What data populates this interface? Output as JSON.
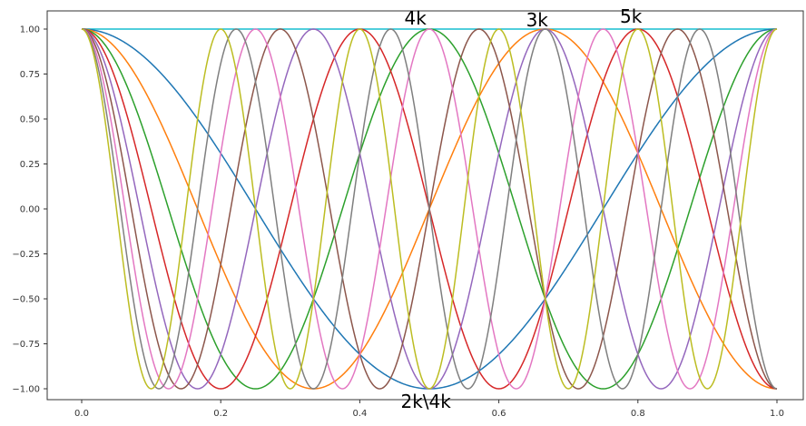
{
  "chart_data": {
    "type": "line",
    "title": "",
    "xlabel": "",
    "ylabel": "",
    "xlim": [
      0.0,
      1.0
    ],
    "ylim": [
      -1.0,
      1.0
    ],
    "grid": false,
    "legend": "none",
    "x_ticks": [
      "0.0",
      "0.2",
      "0.4",
      "0.6",
      "0.8",
      "1.0"
    ],
    "x_tick_values": [
      0.0,
      0.2,
      0.4,
      0.6,
      0.8,
      1.0
    ],
    "y_ticks": [
      "1.00",
      "0.75",
      "0.50",
      "0.25",
      "0.00",
      "−0.25",
      "−0.50",
      "−0.75",
      "−1.00"
    ],
    "y_tick_values": [
      1.0,
      0.75,
      0.5,
      0.25,
      0.0,
      -0.25,
      -0.5,
      -0.75,
      -1.0
    ],
    "series": [
      {
        "function": "cos(2πkx)",
        "k": 0,
        "color": "#17becf"
      },
      {
        "function": "cos(2πkx)",
        "k": 1,
        "color": "#1f77b4"
      },
      {
        "function": "cos(2πkx)",
        "k": 1.5,
        "color": "#ff7f0e"
      },
      {
        "function": "cos(2πkx)",
        "k": 2,
        "color": "#2ca02c"
      },
      {
        "function": "cos(2πkx)",
        "k": 2.5,
        "color": "#d62728"
      },
      {
        "function": "cos(2πkx)",
        "k": 3,
        "color": "#9467bd"
      },
      {
        "function": "cos(2πkx)",
        "k": 3.5,
        "color": "#8c564b"
      },
      {
        "function": "cos(2πkx)",
        "k": 4,
        "color": "#e377c2"
      },
      {
        "function": "cos(2πkx)",
        "k": 4.5,
        "color": "#7f7f7f"
      },
      {
        "function": "cos(2πkx)",
        "k": 5,
        "color": "#bcbd22"
      }
    ],
    "annotations": [
      {
        "text": "4k",
        "x": 0.48,
        "y": 1.06
      },
      {
        "text": "3k",
        "x": 0.655,
        "y": 1.05
      },
      {
        "text": "5k",
        "x": 0.79,
        "y": 1.07
      },
      {
        "text": "2k\\4k",
        "x": 0.495,
        "y": -1.07
      }
    ]
  }
}
